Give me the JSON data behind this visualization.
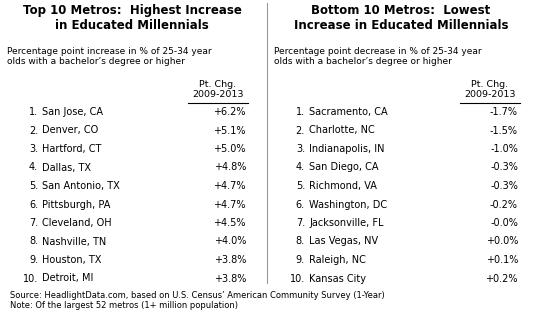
{
  "left_title": "Top 10 Metros:  Highest Increase\nin Educated Millennials",
  "left_subtitle": "Percentage point increase in % of 25-34 year\nolds with a bachelor’s degree or higher",
  "left_col_header1": "Pt. Chg.",
  "left_col_header2": "2009-2013",
  "left_rows": [
    [
      "1.",
      "San Jose, CA",
      "+6.2%"
    ],
    [
      "2.",
      "Denver, CO",
      "+5.1%"
    ],
    [
      "3.",
      "Hartford, CT",
      "+5.0%"
    ],
    [
      "4.",
      "Dallas, TX",
      "+4.8%"
    ],
    [
      "5.",
      "San Antonio, TX",
      "+4.7%"
    ],
    [
      "6.",
      "Pittsburgh, PA",
      "+4.7%"
    ],
    [
      "7.",
      "Cleveland, OH",
      "+4.5%"
    ],
    [
      "8.",
      "Nashville, TN",
      "+4.0%"
    ],
    [
      "9.",
      "Houston, TX",
      "+3.8%"
    ],
    [
      "10.",
      "Detroit, MI",
      "+3.8%"
    ]
  ],
  "right_title": "Bottom 10 Metros:  Lowest\nIncrease in Educated Millennials",
  "right_subtitle": "Percentage point decrease in % of 25-34 year\nolds with a bachelor’s degree or higher",
  "right_col_header1": "Pt. Chg.",
  "right_col_header2": "2009-2013",
  "right_rows": [
    [
      "1.",
      "Sacramento, CA",
      "-1.7%"
    ],
    [
      "2.",
      "Charlotte, NC",
      "-1.5%"
    ],
    [
      "3.",
      "Indianapolis, IN",
      "-1.0%"
    ],
    [
      "4.",
      "San Diego, CA",
      "-0.3%"
    ],
    [
      "5.",
      "Richmond, VA",
      "-0.3%"
    ],
    [
      "6.",
      "Washington, DC",
      "-0.2%"
    ],
    [
      "7.",
      "Jacksonville, FL",
      "-0.0%"
    ],
    [
      "8.",
      "Las Vegas, NV",
      "+0.0%"
    ],
    [
      "9.",
      "Raleigh, NC",
      "+0.1%"
    ],
    [
      "10.",
      "Kansas City",
      "+0.2%"
    ]
  ],
  "source_text": "Source: HeadlightData.com, based on U.S. Census’ American Community Survey (1-Year)\nNote: Of the largest 52 metros (1+ million population)",
  "bg_color": "#ffffff",
  "title_color": "#000000",
  "text_color": "#000000",
  "title_fontsize": 8.5,
  "subtitle_fontsize": 6.5,
  "header_fontsize": 6.8,
  "row_fontsize": 7.0,
  "source_fontsize": 6.0
}
